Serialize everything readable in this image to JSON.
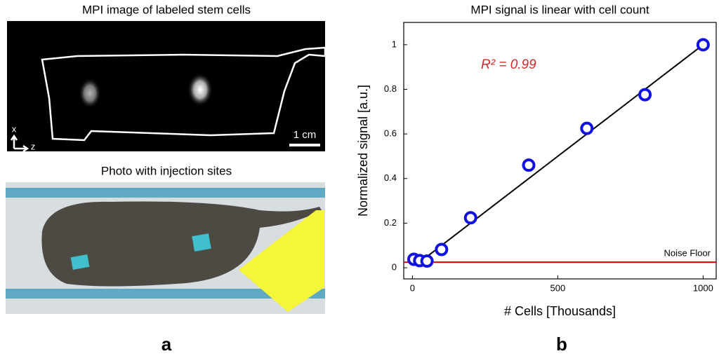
{
  "panel_a": {
    "mpi_title": "MPI image of labeled stem cells",
    "scale_bar": "1 cm",
    "axis_x": "x",
    "axis_z": "z",
    "photo_title": "Photo with injection sites",
    "label": "a"
  },
  "chart_data": {
    "type": "scatter",
    "title": "MPI signal is linear with cell count",
    "xlabel": "# Cells [Thousands]",
    "ylabel": "Normalized signal [a.u.]",
    "annotation": "R² = 0.99",
    "annotation_color": "#d42a2a",
    "x": [
      5,
      25,
      50,
      100,
      200,
      400,
      600,
      800,
      1000
    ],
    "series": [
      {
        "color": "#1010e0",
        "values": [
          0.038,
          0.032,
          0.03,
          0.082,
          0.224,
          0.46,
          0.625,
          0.776,
          1.0
        ]
      }
    ],
    "fit_line": {
      "x": [
        20,
        1000
      ],
      "values": [
        0.02,
        1.0
      ],
      "color": "#000000"
    },
    "noise_floor": {
      "label": "Noise Floor",
      "value": 0.025,
      "color": "#d40000"
    },
    "xlim": [
      -30,
      1045
    ],
    "ylim": [
      -0.05,
      1.1
    ],
    "xticks": [
      0,
      500,
      1000
    ],
    "yticks": [
      0,
      0.2,
      0.4,
      0.6,
      0.8,
      1
    ],
    "panel_label": "b"
  }
}
